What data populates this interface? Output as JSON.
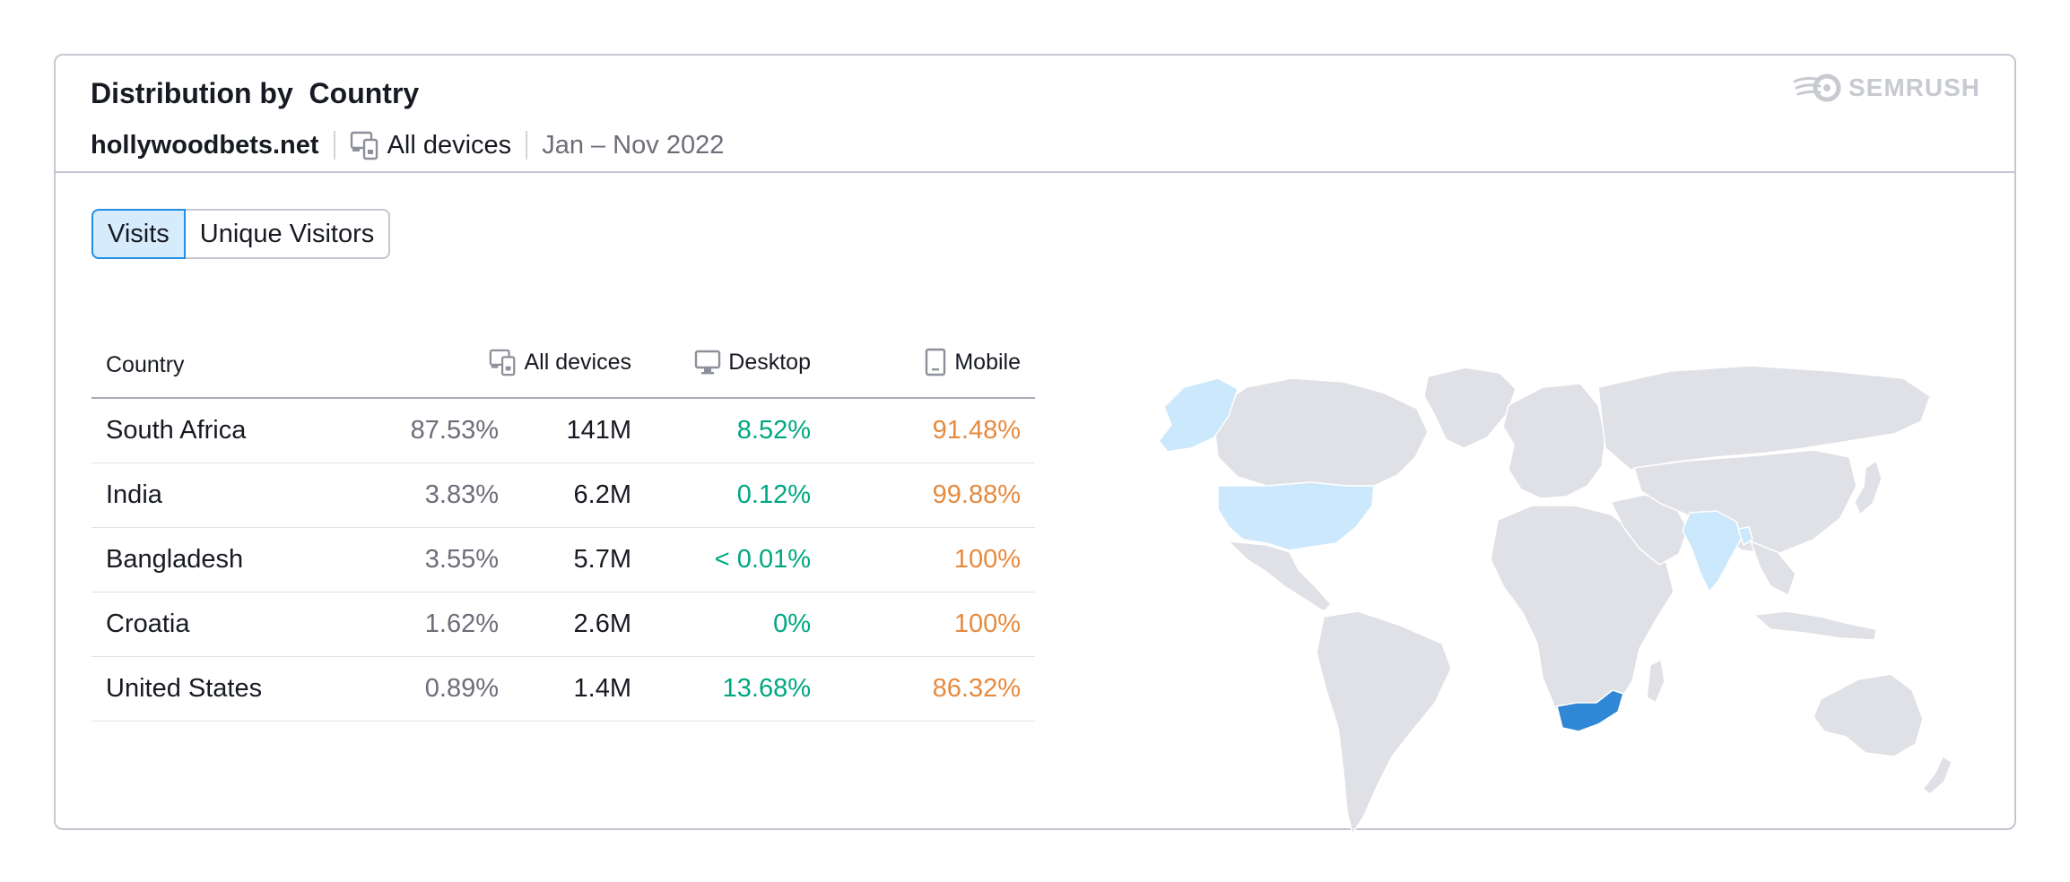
{
  "widget": {
    "title": "Distribution by  Country",
    "domain": "hollywoodbets.net",
    "devices_label": "All devices",
    "date_range": "Jan – Nov 2022",
    "brand": "SEMRUSH"
  },
  "toggle": {
    "options": [
      "Visits",
      "Unique Visitors"
    ],
    "selected": "Visits"
  },
  "table": {
    "headers": {
      "country": "Country",
      "all_devices": "All devices",
      "desktop": "Desktop",
      "mobile": "Mobile"
    },
    "rows": [
      {
        "country": "South Africa",
        "share": "87.53%",
        "visits": "141M",
        "desktop": "8.52%",
        "mobile": "91.48%"
      },
      {
        "country": "India",
        "share": "3.83%",
        "visits": "6.2M",
        "desktop": "0.12%",
        "mobile": "99.88%"
      },
      {
        "country": "Bangladesh",
        "share": "3.55%",
        "visits": "5.7M",
        "desktop": "< 0.01%",
        "mobile": "100%"
      },
      {
        "country": "Croatia",
        "share": "1.62%",
        "visits": "2.6M",
        "desktop": "0%",
        "mobile": "100%"
      },
      {
        "country": "United States",
        "share": "0.89%",
        "visits": "1.4M",
        "desktop": "13.68%",
        "mobile": "86.32%"
      }
    ]
  },
  "map": {
    "highlighted_countries": [
      "South Africa",
      "India",
      "United States"
    ],
    "colors": {
      "base": "#e0e1e6",
      "light": "#cce8fc",
      "strong": "#2f87d6",
      "border": "#ffffff"
    }
  },
  "colors": {
    "desktop": "#00a881",
    "mobile": "#e68a3e",
    "active_toggle_bg": "#d6ecfd",
    "active_toggle_border": "#1f8ee4"
  }
}
